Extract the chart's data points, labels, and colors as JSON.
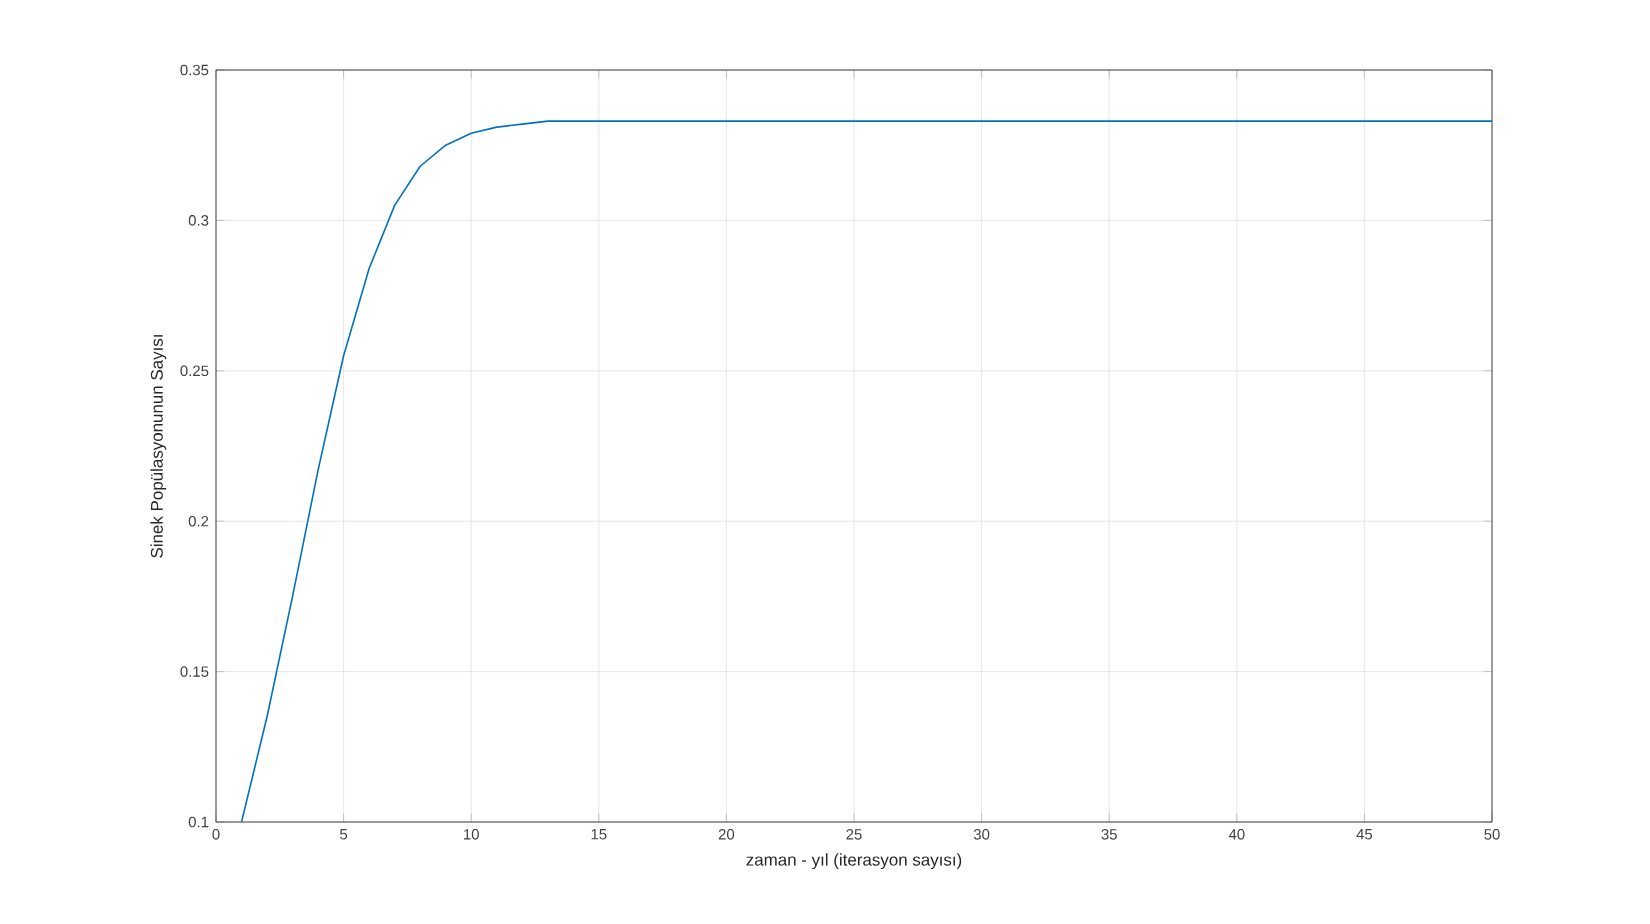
{
  "chart_data": {
    "type": "line",
    "xlabel": "zaman - yıl (iterasyon sayısı)",
    "ylabel": "Sinek Popülasyonunun Sayısı",
    "x": [
      1,
      2,
      3,
      4,
      5,
      6,
      7,
      8,
      9,
      10,
      11,
      12,
      13,
      14,
      15,
      50
    ],
    "series": [
      {
        "color": "#0072bd",
        "values": [
          0.1,
          0.135,
          0.175,
          0.217,
          0.255,
          0.284,
          0.305,
          0.318,
          0.325,
          0.329,
          0.331,
          0.332,
          0.333,
          0.333,
          0.333,
          0.333
        ]
      }
    ],
    "xlim": [
      0,
      50
    ],
    "ylim": [
      0.1,
      0.35
    ],
    "xticks": [
      0,
      5,
      10,
      15,
      20,
      25,
      30,
      35,
      40,
      45,
      50
    ],
    "yticks": [
      0.1,
      0.15,
      0.2,
      0.25,
      0.3,
      0.35
    ],
    "grid": true,
    "marker": "none",
    "line_style": "solid"
  }
}
